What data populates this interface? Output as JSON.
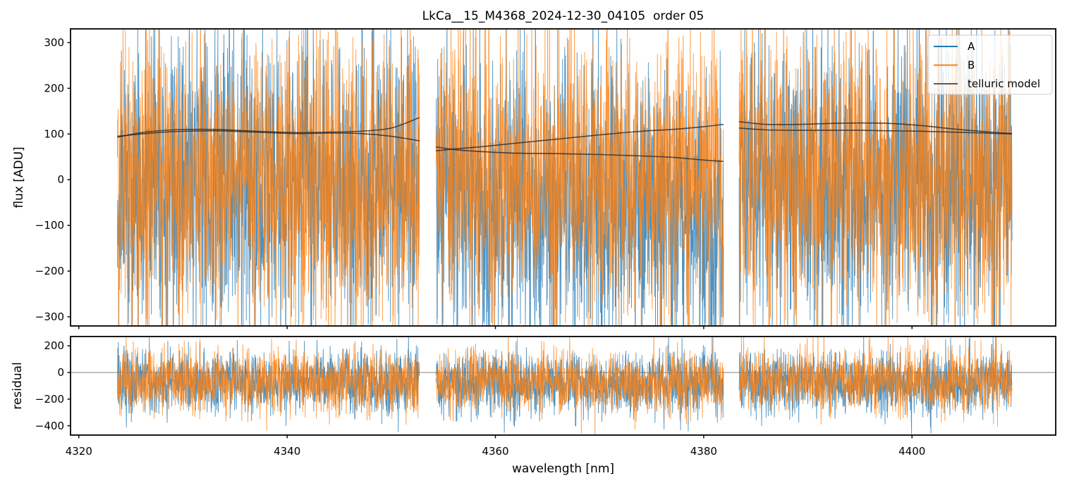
{
  "figure": {
    "title": "LkCa__15_M4368_2024-12-30_04105  order 05"
  },
  "chart_data": {
    "type": "line",
    "title": "LkCa__15_M4368_2024-12-30_04105  order 05",
    "xlabel": "wavelength [nm]",
    "xlim": [
      4319.2,
      4413.8
    ],
    "xticks": {
      "values": [
        4320,
        4340,
        4360,
        4380,
        4400
      ],
      "labels": [
        "4320",
        "4340",
        "4360",
        "4380",
        "4400"
      ]
    },
    "grid": false,
    "panels": [
      {
        "id": "flux",
        "ylabel": "flux [ADU]",
        "ylim": [
          -320,
          330
        ],
        "yticks": {
          "values": [
            300,
            200,
            100,
            0,
            -100,
            -200,
            -300
          ],
          "labels": [
            "300",
            "200",
            "100",
            "0",
            "−100",
            "−200",
            "−300"
          ]
        },
        "zero_line": false
      },
      {
        "id": "residual",
        "ylabel": "residual",
        "ylim": [
          -470,
          270
        ],
        "yticks": {
          "values": [
            200,
            0,
            -200,
            -400
          ],
          "labels": [
            "200",
            "0",
            "−200",
            "−400"
          ]
        },
        "zero_line": true
      }
    ],
    "legend": {
      "position": "upper right",
      "entries": [
        {
          "label": "A",
          "color": "#1f77b4"
        },
        {
          "label": "B",
          "color": "#ff7f0e"
        },
        {
          "label": "telluric model",
          "color": "#595959"
        }
      ]
    },
    "segments_nm": [
      [
        4323.7,
        4352.7
      ],
      [
        4354.3,
        4381.9
      ],
      [
        4383.4,
        4409.6
      ]
    ],
    "points_per_nm": 44,
    "series": [
      {
        "name": "A",
        "color": "#1f77b4",
        "alpha": 0.8,
        "linewidth": 0.9,
        "flux": {
          "seed": 11,
          "sigma": 160,
          "mean_by_segment": [
            [
              -10,
              -10
            ],
            [
              -30,
              -75
            ],
            [
              -12,
              -12
            ]
          ]
        },
        "residual": {
          "seed": 13,
          "sigma": 120,
          "mean_by_segment": [
            [
              -80,
              -80
            ],
            [
              -85,
              -85
            ],
            [
              -75,
              -75
            ]
          ]
        }
      },
      {
        "name": "B",
        "color": "#ff7f0e",
        "alpha": 0.8,
        "linewidth": 0.9,
        "flux": {
          "seed": 17,
          "sigma": 160,
          "mean_by_segment": [
            [
              0,
              0
            ],
            [
              5,
              5
            ],
            [
              0,
              0
            ]
          ]
        },
        "residual": {
          "seed": 19,
          "sigma": 120,
          "mean_by_segment": [
            [
              -70,
              -70
            ],
            [
              -70,
              -70
            ],
            [
              -66,
              -66
            ]
          ]
        }
      }
    ],
    "telluric_model": {
      "color": "#2b2b2b",
      "alpha": 0.8,
      "linewidth": 1.6,
      "curves": [
        {
          "series": "B",
          "points_by_segment": [
            [
              [
                4323.7,
                93
              ],
              [
                4326,
                103
              ],
              [
                4329,
                109
              ],
              [
                4333,
                110
              ],
              [
                4337,
                106
              ],
              [
                4341,
                103
              ],
              [
                4344,
                104
              ],
              [
                4347,
                106
              ],
              [
                4350,
                113
              ],
              [
                4352.7,
                136
              ]
            ],
            [
              [
                4354.3,
                63
              ],
              [
                4356,
                67
              ],
              [
                4359,
                73
              ],
              [
                4362,
                80
              ],
              [
                4366,
                89
              ],
              [
                4370,
                98
              ],
              [
                4374,
                106
              ],
              [
                4377,
                110
              ],
              [
                4380,
                116
              ],
              [
                4381.9,
                121
              ]
            ],
            [
              [
                4383.4,
                127
              ],
              [
                4386,
                121
              ],
              [
                4389,
                121
              ],
              [
                4392,
                123
              ],
              [
                4395,
                124
              ],
              [
                4398,
                123
              ],
              [
                4401,
                118
              ],
              [
                4404,
                111
              ],
              [
                4407,
                105
              ],
              [
                4409.6,
                101
              ]
            ]
          ]
        },
        {
          "series": "A",
          "points_by_segment": [
            [
              [
                4323.7,
                95
              ],
              [
                4326,
                100
              ],
              [
                4329,
                105
              ],
              [
                4333,
                107
              ],
              [
                4337,
                104
              ],
              [
                4341,
                101
              ],
              [
                4344,
                102
              ],
              [
                4347,
                101
              ],
              [
                4350,
                95
              ],
              [
                4352.7,
                85
              ]
            ],
            [
              [
                4354.3,
                72
              ],
              [
                4356,
                66
              ],
              [
                4359,
                61
              ],
              [
                4362,
                58
              ],
              [
                4366,
                57
              ],
              [
                4370,
                55
              ],
              [
                4374,
                52
              ],
              [
                4377,
                49
              ],
              [
                4380,
                43
              ],
              [
                4381.9,
                40
              ]
            ],
            [
              [
                4383.4,
                113
              ],
              [
                4386,
                109
              ],
              [
                4389,
                108
              ],
              [
                4392,
                108
              ],
              [
                4395,
                108
              ],
              [
                4398,
                107
              ],
              [
                4401,
                106
              ],
              [
                4404,
                104
              ],
              [
                4407,
                102
              ],
              [
                4409.6,
                100
              ]
            ]
          ]
        }
      ]
    },
    "axis_color": "#000000",
    "zero_line_color": "#808080"
  }
}
